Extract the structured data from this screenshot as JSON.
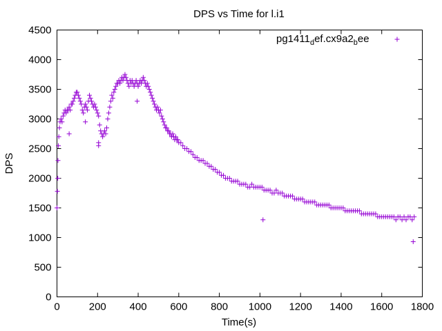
{
  "chart_data": {
    "type": "scatter",
    "title": "DPS vs Time for l.i1",
    "xlabel": "Time(s)",
    "ylabel": "DPS",
    "xlim": [
      0,
      1800
    ],
    "ylim": [
      0,
      4500
    ],
    "xticks": [
      0,
      200,
      400,
      600,
      800,
      1000,
      1200,
      1400,
      1600,
      1800
    ],
    "yticks": [
      0,
      500,
      1000,
      1500,
      2000,
      2500,
      3000,
      3500,
      4000,
      4500
    ],
    "grid": false,
    "legend_position": "top-right",
    "marker": "+",
    "series": [
      {
        "name": "pg1411_def.cx9a2_bee",
        "legend_main_1": "pg1411",
        "legend_sub_1": "d",
        "legend_main_2": "ef.cx9a2",
        "legend_sub_2": "b",
        "legend_main_3": "ee",
        "color": "#9400d3",
        "points": [
          [
            0,
            1500
          ],
          [
            2,
            1780
          ],
          [
            4,
            2000
          ],
          [
            5,
            2300
          ],
          [
            7,
            2550
          ],
          [
            9,
            2700
          ],
          [
            12,
            2850
          ],
          [
            15,
            2950
          ],
          [
            20,
            3000
          ],
          [
            25,
            2950
          ],
          [
            30,
            3050
          ],
          [
            35,
            3100
          ],
          [
            40,
            3150
          ],
          [
            45,
            3100
          ],
          [
            50,
            3150
          ],
          [
            55,
            3150
          ],
          [
            60,
            3200
          ],
          [
            65,
            3150
          ],
          [
            70,
            3250
          ],
          [
            75,
            3250
          ],
          [
            80,
            3300
          ],
          [
            85,
            3350
          ],
          [
            90,
            3400
          ],
          [
            95,
            3450
          ],
          [
            100,
            3450
          ],
          [
            105,
            3400
          ],
          [
            110,
            3350
          ],
          [
            115,
            3300
          ],
          [
            120,
            3250
          ],
          [
            125,
            3150
          ],
          [
            130,
            3100
          ],
          [
            135,
            3200
          ],
          [
            140,
            3250
          ],
          [
            145,
            3200
          ],
          [
            150,
            3150
          ],
          [
            155,
            3300
          ],
          [
            160,
            3400
          ],
          [
            165,
            3350
          ],
          [
            170,
            3300
          ],
          [
            175,
            3250
          ],
          [
            180,
            3200
          ],
          [
            185,
            3250
          ],
          [
            190,
            3200
          ],
          [
            195,
            3150
          ],
          [
            200,
            3100
          ],
          [
            205,
            3050
          ],
          [
            210,
            2900
          ],
          [
            215,
            2800
          ],
          [
            220,
            2750
          ],
          [
            225,
            2700
          ],
          [
            230,
            2750
          ],
          [
            235,
            2800
          ],
          [
            240,
            2750
          ],
          [
            245,
            2850
          ],
          [
            250,
            3000
          ],
          [
            255,
            3100
          ],
          [
            260,
            3200
          ],
          [
            265,
            3300
          ],
          [
            270,
            3400
          ],
          [
            275,
            3350
          ],
          [
            280,
            3450
          ],
          [
            285,
            3500
          ],
          [
            290,
            3550
          ],
          [
            295,
            3600
          ],
          [
            300,
            3600
          ],
          [
            305,
            3650
          ],
          [
            310,
            3600
          ],
          [
            315,
            3650
          ],
          [
            320,
            3700
          ],
          [
            325,
            3650
          ],
          [
            330,
            3700
          ],
          [
            335,
            3750
          ],
          [
            340,
            3700
          ],
          [
            345,
            3650
          ],
          [
            350,
            3600
          ],
          [
            355,
            3550
          ],
          [
            360,
            3650
          ],
          [
            365,
            3600
          ],
          [
            370,
            3650
          ],
          [
            375,
            3600
          ],
          [
            380,
            3550
          ],
          [
            385,
            3600
          ],
          [
            390,
            3650
          ],
          [
            395,
            3600
          ],
          [
            400,
            3550
          ],
          [
            405,
            3600
          ],
          [
            410,
            3650
          ],
          [
            415,
            3600
          ],
          [
            420,
            3650
          ],
          [
            425,
            3700
          ],
          [
            430,
            3650
          ],
          [
            435,
            3600
          ],
          [
            440,
            3550
          ],
          [
            445,
            3600
          ],
          [
            450,
            3550
          ],
          [
            455,
            3500
          ],
          [
            460,
            3450
          ],
          [
            465,
            3400
          ],
          [
            470,
            3350
          ],
          [
            475,
            3300
          ],
          [
            480,
            3250
          ],
          [
            485,
            3200
          ],
          [
            490,
            3150
          ],
          [
            495,
            3200
          ],
          [
            500,
            3150
          ],
          [
            505,
            3100
          ],
          [
            510,
            3150
          ],
          [
            515,
            3050
          ],
          [
            520,
            3000
          ],
          [
            525,
            2950
          ],
          [
            530,
            2900
          ],
          [
            535,
            2850
          ],
          [
            540,
            2850
          ],
          [
            545,
            2800
          ],
          [
            550,
            2800
          ],
          [
            555,
            2750
          ],
          [
            560,
            2750
          ],
          [
            565,
            2700
          ],
          [
            570,
            2750
          ],
          [
            575,
            2700
          ],
          [
            580,
            2650
          ],
          [
            585,
            2700
          ],
          [
            590,
            2650
          ],
          [
            595,
            2650
          ],
          [
            600,
            2600
          ],
          [
            610,
            2600
          ],
          [
            620,
            2550
          ],
          [
            630,
            2500
          ],
          [
            640,
            2500
          ],
          [
            650,
            2450
          ],
          [
            660,
            2450
          ],
          [
            670,
            2400
          ],
          [
            680,
            2350
          ],
          [
            690,
            2350
          ],
          [
            700,
            2300
          ],
          [
            710,
            2300
          ],
          [
            720,
            2300
          ],
          [
            730,
            2250
          ],
          [
            740,
            2250
          ],
          [
            750,
            2200
          ],
          [
            760,
            2200
          ],
          [
            770,
            2150
          ],
          [
            780,
            2150
          ],
          [
            790,
            2100
          ],
          [
            800,
            2100
          ],
          [
            810,
            2050
          ],
          [
            820,
            2050
          ],
          [
            830,
            2000
          ],
          [
            840,
            2000
          ],
          [
            850,
            2000
          ],
          [
            860,
            1950
          ],
          [
            870,
            1950
          ],
          [
            880,
            1950
          ],
          [
            890,
            1950
          ],
          [
            900,
            1900
          ],
          [
            910,
            1900
          ],
          [
            920,
            1900
          ],
          [
            930,
            1900
          ],
          [
            940,
            1850
          ],
          [
            950,
            1850
          ],
          [
            960,
            1900
          ],
          [
            970,
            1850
          ],
          [
            980,
            1850
          ],
          [
            990,
            1850
          ],
          [
            1000,
            1850
          ],
          [
            1010,
            1850
          ],
          [
            1020,
            1800
          ],
          [
            1030,
            1800
          ],
          [
            1040,
            1800
          ],
          [
            1050,
            1800
          ],
          [
            1060,
            1750
          ],
          [
            1070,
            1750
          ],
          [
            1080,
            1800
          ],
          [
            1090,
            1750
          ],
          [
            1100,
            1750
          ],
          [
            1110,
            1750
          ],
          [
            1120,
            1700
          ],
          [
            1130,
            1700
          ],
          [
            1140,
            1700
          ],
          [
            1150,
            1700
          ],
          [
            1160,
            1700
          ],
          [
            1170,
            1650
          ],
          [
            1180,
            1650
          ],
          [
            1190,
            1650
          ],
          [
            1200,
            1650
          ],
          [
            1210,
            1650
          ],
          [
            1220,
            1600
          ],
          [
            1230,
            1600
          ],
          [
            1240,
            1600
          ],
          [
            1250,
            1600
          ],
          [
            1260,
            1600
          ],
          [
            1270,
            1600
          ],
          [
            1280,
            1550
          ],
          [
            1290,
            1550
          ],
          [
            1300,
            1550
          ],
          [
            1310,
            1550
          ],
          [
            1320,
            1550
          ],
          [
            1330,
            1550
          ],
          [
            1340,
            1550
          ],
          [
            1350,
            1500
          ],
          [
            1360,
            1500
          ],
          [
            1370,
            1500
          ],
          [
            1380,
            1500
          ],
          [
            1390,
            1500
          ],
          [
            1400,
            1500
          ],
          [
            1410,
            1500
          ],
          [
            1420,
            1450
          ],
          [
            1430,
            1450
          ],
          [
            1440,
            1450
          ],
          [
            1450,
            1450
          ],
          [
            1460,
            1450
          ],
          [
            1470,
            1450
          ],
          [
            1480,
            1450
          ],
          [
            1490,
            1450
          ],
          [
            1500,
            1400
          ],
          [
            1510,
            1400
          ],
          [
            1520,
            1400
          ],
          [
            1530,
            1400
          ],
          [
            1540,
            1400
          ],
          [
            1550,
            1400
          ],
          [
            1560,
            1400
          ],
          [
            1570,
            1400
          ],
          [
            1580,
            1350
          ],
          [
            1590,
            1350
          ],
          [
            1600,
            1350
          ],
          [
            1610,
            1350
          ],
          [
            1620,
            1350
          ],
          [
            1630,
            1350
          ],
          [
            1640,
            1350
          ],
          [
            1650,
            1350
          ],
          [
            1660,
            1350
          ],
          [
            1670,
            1300
          ],
          [
            1680,
            1350
          ],
          [
            1690,
            1350
          ],
          [
            1700,
            1300
          ],
          [
            1710,
            1350
          ],
          [
            1720,
            1300
          ],
          [
            1730,
            1350
          ],
          [
            1740,
            1350
          ],
          [
            1750,
            1300
          ],
          [
            1760,
            1350
          ],
          [
            60,
            2750
          ],
          [
            140,
            2950
          ],
          [
            205,
            2550
          ],
          [
            205,
            2600
          ],
          [
            395,
            3300
          ],
          [
            1015,
            1300
          ],
          [
            1755,
            930
          ]
        ]
      }
    ]
  }
}
